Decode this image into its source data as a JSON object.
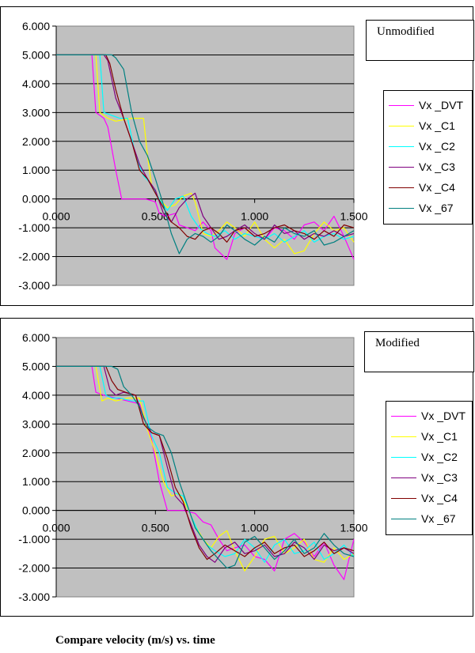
{
  "caption": "Compare velocity (m/s) vs. time",
  "colors": {
    "plot_background": "#c0c0c0",
    "Vx_DVT": "#ff00ff",
    "Vx_C1": "#ffff00",
    "Vx_C2": "#00ffff",
    "Vx_C3": "#800080",
    "Vx_C4": "#800000",
    "Vx_67": "#008080"
  },
  "chart_data": [
    {
      "type": "line",
      "title": "Unmodified",
      "xlabel": "",
      "ylabel": "",
      "xlim": [
        0,
        1.5
      ],
      "ylim": [
        -3,
        6
      ],
      "x_ticks": [
        "0.000",
        "0.500",
        "1.000",
        "1.500"
      ],
      "y_ticks": [
        "6.000",
        "5.000",
        "4.000",
        "3.000",
        "2.000",
        "1.000",
        "0.000",
        "-1.000",
        "-2.000",
        "-3.000"
      ],
      "grid": "horizontal",
      "legend_position": "right",
      "series": [
        {
          "name": "Vx _DVT",
          "color": "#ff00ff",
          "x": [
            0.0,
            0.18,
            0.2,
            0.24,
            0.26,
            0.3,
            0.33,
            0.37,
            0.45,
            0.5,
            0.52,
            0.55,
            0.6,
            0.62,
            0.66,
            0.7,
            0.74,
            0.78,
            0.8,
            0.86,
            0.9,
            0.95,
            1.0,
            1.05,
            1.1,
            1.15,
            1.2,
            1.25,
            1.3,
            1.35,
            1.4,
            1.45,
            1.5
          ],
          "y": [
            5.0,
            5.0,
            3.0,
            2.8,
            2.5,
            1.0,
            0.0,
            0.0,
            0.0,
            -0.1,
            -0.5,
            -0.6,
            -0.5,
            -0.9,
            -1.0,
            -1.1,
            -0.8,
            -1.1,
            -1.7,
            -2.1,
            -1.2,
            -1.0,
            -1.3,
            -1.4,
            -1.0,
            -1.1,
            -1.4,
            -0.9,
            -0.8,
            -1.1,
            -0.6,
            -1.3,
            -2.1
          ]
        },
        {
          "name": "Vx _C1",
          "color": "#ffff00",
          "x": [
            0.0,
            0.2,
            0.22,
            0.26,
            0.3,
            0.38,
            0.44,
            0.46,
            0.48,
            0.52,
            0.56,
            0.6,
            0.64,
            0.68,
            0.7,
            0.74,
            0.78,
            0.82,
            0.86,
            0.9,
            0.95,
            1.0,
            1.05,
            1.1,
            1.15,
            1.2,
            1.25,
            1.3,
            1.35,
            1.4,
            1.45,
            1.5
          ],
          "y": [
            5.0,
            5.0,
            3.0,
            2.8,
            2.7,
            2.8,
            2.8,
            1.5,
            0.5,
            0.0,
            -0.3,
            -0.2,
            0.1,
            0.2,
            -0.1,
            -1.2,
            -1.3,
            -1.1,
            -0.8,
            -1.0,
            -1.3,
            -0.8,
            -1.4,
            -1.7,
            -1.4,
            -1.9,
            -1.8,
            -1.2,
            -0.8,
            -1.1,
            -1.0,
            -1.5
          ]
        },
        {
          "name": "Vx _C2",
          "color": "#00ffff",
          "x": [
            0.0,
            0.22,
            0.24,
            0.28,
            0.32,
            0.36,
            0.4,
            0.44,
            0.48,
            0.52,
            0.56,
            0.6,
            0.64,
            0.68,
            0.72,
            0.76,
            0.8,
            0.85,
            0.9,
            0.95,
            1.0,
            1.05,
            1.1,
            1.15,
            1.2,
            1.25,
            1.3,
            1.35,
            1.4,
            1.45,
            1.5
          ],
          "y": [
            5.0,
            5.0,
            3.0,
            2.9,
            2.8,
            2.8,
            1.5,
            0.8,
            0.5,
            0.0,
            -0.4,
            0.0,
            0.1,
            -0.6,
            -1.0,
            -1.2,
            -1.3,
            -1.1,
            -1.4,
            -1.2,
            -1.3,
            -1.4,
            -1.2,
            -1.5,
            -1.3,
            -1.1,
            -1.5,
            -1.3,
            -1.2,
            -1.4,
            -1.3
          ]
        },
        {
          "name": "Vx _C3",
          "color": "#800080",
          "x": [
            0.0,
            0.24,
            0.26,
            0.3,
            0.34,
            0.38,
            0.42,
            0.46,
            0.5,
            0.54,
            0.58,
            0.62,
            0.66,
            0.7,
            0.74,
            0.78,
            0.82,
            0.86,
            0.9,
            0.95,
            1.0,
            1.05,
            1.1,
            1.15,
            1.2,
            1.25,
            1.3,
            1.35,
            1.4,
            1.45,
            1.5
          ],
          "y": [
            5.0,
            5.0,
            4.8,
            3.5,
            2.8,
            2.0,
            1.2,
            0.7,
            0.3,
            -0.5,
            -0.8,
            -0.3,
            0.0,
            0.2,
            -0.6,
            -1.0,
            -1.4,
            -1.3,
            -1.1,
            -0.9,
            -1.2,
            -1.4,
            -0.9,
            -1.2,
            -1.1,
            -1.4,
            -1.2,
            -1.3,
            -1.1,
            -1.3,
            -1.2
          ]
        },
        {
          "name": "Vx _C4",
          "color": "#800000",
          "x": [
            0.0,
            0.25,
            0.27,
            0.3,
            0.34,
            0.38,
            0.42,
            0.46,
            0.5,
            0.54,
            0.58,
            0.62,
            0.66,
            0.7,
            0.74,
            0.78,
            0.82,
            0.86,
            0.9,
            0.95,
            1.0,
            1.05,
            1.1,
            1.15,
            1.2,
            1.25,
            1.3,
            1.35,
            1.4,
            1.45,
            1.5
          ],
          "y": [
            5.0,
            5.0,
            4.7,
            3.8,
            2.8,
            2.0,
            1.0,
            0.7,
            0.2,
            -0.3,
            -0.8,
            -1.0,
            -1.3,
            -1.4,
            -1.1,
            -1.0,
            -1.2,
            -1.5,
            -1.1,
            -1.0,
            -1.3,
            -1.2,
            -1.0,
            -0.9,
            -1.1,
            -1.2,
            -1.4,
            -1.1,
            -1.3,
            -0.9,
            -1.0
          ]
        },
        {
          "name": "Vx _67",
          "color": "#008080",
          "x": [
            0.0,
            0.28,
            0.3,
            0.34,
            0.38,
            0.42,
            0.46,
            0.5,
            0.54,
            0.58,
            0.62,
            0.66,
            0.7,
            0.74,
            0.78,
            0.82,
            0.86,
            0.9,
            0.95,
            1.0,
            1.05,
            1.1,
            1.15,
            1.2,
            1.25,
            1.3,
            1.35,
            1.4,
            1.45,
            1.5
          ],
          "y": [
            5.0,
            5.0,
            4.9,
            4.5,
            3.0,
            2.0,
            1.5,
            0.7,
            -0.2,
            -1.2,
            -1.9,
            -1.4,
            -1.2,
            -1.3,
            -1.5,
            -1.3,
            -0.9,
            -1.1,
            -1.4,
            -1.6,
            -1.3,
            -1.5,
            -1.0,
            -1.2,
            -1.3,
            -1.1,
            -1.6,
            -1.5,
            -1.3,
            -1.1
          ]
        }
      ]
    },
    {
      "type": "line",
      "title": "Modified",
      "xlabel": "",
      "ylabel": "",
      "xlim": [
        0,
        1.5
      ],
      "ylim": [
        -3,
        6
      ],
      "x_ticks": [
        "0.000",
        "0.500",
        "1.000",
        "1.500"
      ],
      "y_ticks": [
        "6.000",
        "5.000",
        "4.000",
        "3.000",
        "2.000",
        "1.000",
        "0.000",
        "-1.000",
        "-2.000",
        "-3.000"
      ],
      "grid": "horizontal",
      "legend_position": "right",
      "series": [
        {
          "name": "Vx _DVT",
          "color": "#ff00ff",
          "x": [
            0.0,
            0.18,
            0.2,
            0.24,
            0.3,
            0.36,
            0.42,
            0.48,
            0.52,
            0.56,
            0.58,
            0.6,
            0.64,
            0.7,
            0.74,
            0.78,
            0.82,
            0.86,
            0.9,
            0.95,
            1.0,
            1.05,
            1.1,
            1.15,
            1.2,
            1.25,
            1.3,
            1.35,
            1.4,
            1.45,
            1.5
          ],
          "y": [
            5.0,
            5.0,
            4.1,
            4.0,
            3.9,
            3.8,
            3.7,
            2.5,
            1.0,
            0.0,
            0.0,
            0.0,
            0.0,
            -0.1,
            -0.4,
            -0.5,
            -1.0,
            -1.4,
            -1.3,
            -1.2,
            -1.6,
            -1.7,
            -2.1,
            -1.0,
            -0.8,
            -1.1,
            -1.6,
            -1.1,
            -1.9,
            -2.4,
            -1.0
          ]
        },
        {
          "name": "Vx _C1",
          "color": "#ffff00",
          "x": [
            0.0,
            0.2,
            0.23,
            0.26,
            0.3,
            0.36,
            0.42,
            0.46,
            0.5,
            0.54,
            0.58,
            0.62,
            0.66,
            0.7,
            0.74,
            0.78,
            0.82,
            0.86,
            0.9,
            0.95,
            1.0,
            1.05,
            1.1,
            1.15,
            1.2,
            1.25,
            1.3,
            1.35,
            1.4,
            1.45,
            1.5
          ],
          "y": [
            5.0,
            5.0,
            3.8,
            3.9,
            3.8,
            3.9,
            3.9,
            2.8,
            2.0,
            1.0,
            0.5,
            0.6,
            0.1,
            -0.5,
            -1.0,
            -1.3,
            -0.9,
            -0.7,
            -1.4,
            -2.1,
            -1.6,
            -1.0,
            -0.9,
            -1.5,
            -1.3,
            -1.0,
            -1.7,
            -1.8,
            -1.3,
            -1.7,
            -1.5
          ]
        },
        {
          "name": "Vx _C2",
          "color": "#00ffff",
          "x": [
            0.0,
            0.22,
            0.25,
            0.28,
            0.32,
            0.38,
            0.44,
            0.48,
            0.52,
            0.56,
            0.6,
            0.64,
            0.68,
            0.72,
            0.76,
            0.8,
            0.85,
            0.9,
            0.95,
            1.0,
            1.05,
            1.1,
            1.15,
            1.2,
            1.25,
            1.3,
            1.35,
            1.4,
            1.45,
            1.5
          ],
          "y": [
            5.0,
            5.0,
            4.0,
            3.9,
            3.9,
            3.8,
            3.8,
            2.6,
            2.0,
            0.8,
            0.6,
            0.5,
            -0.2,
            -0.8,
            -1.2,
            -1.4,
            -1.6,
            -1.5,
            -1.0,
            -1.3,
            -1.8,
            -1.2,
            -1.0,
            -1.5,
            -1.4,
            -1.1,
            -1.7,
            -1.5,
            -1.2,
            -1.6
          ]
        },
        {
          "name": "Vx _C3",
          "color": "#800080",
          "x": [
            0.0,
            0.24,
            0.27,
            0.3,
            0.34,
            0.4,
            0.44,
            0.48,
            0.52,
            0.56,
            0.6,
            0.64,
            0.68,
            0.72,
            0.76,
            0.8,
            0.85,
            0.9,
            0.95,
            1.0,
            1.05,
            1.1,
            1.15,
            1.2,
            1.25,
            1.3,
            1.35,
            1.4,
            1.45,
            1.5
          ],
          "y": [
            5.0,
            5.0,
            4.2,
            4.0,
            4.1,
            4.0,
            3.2,
            2.7,
            2.6,
            1.5,
            0.5,
            0.2,
            -0.5,
            -1.2,
            -1.6,
            -1.8,
            -1.3,
            -1.1,
            -1.5,
            -1.4,
            -1.2,
            -1.6,
            -1.5,
            -1.1,
            -1.3,
            -1.7,
            -1.2,
            -1.4,
            -1.3,
            -1.5
          ]
        },
        {
          "name": "Vx _C4",
          "color": "#800000",
          "x": [
            0.0,
            0.25,
            0.28,
            0.31,
            0.35,
            0.4,
            0.44,
            0.48,
            0.52,
            0.56,
            0.6,
            0.64,
            0.68,
            0.72,
            0.76,
            0.8,
            0.85,
            0.9,
            0.95,
            1.0,
            1.05,
            1.1,
            1.15,
            1.2,
            1.25,
            1.3,
            1.35,
            1.4,
            1.45,
            1.5
          ],
          "y": [
            5.0,
            5.0,
            4.5,
            4.2,
            4.1,
            4.0,
            3.0,
            2.7,
            2.6,
            1.8,
            0.8,
            0.3,
            -0.6,
            -1.3,
            -1.7,
            -1.5,
            -1.2,
            -1.4,
            -1.6,
            -1.3,
            -1.1,
            -1.5,
            -1.3,
            -1.2,
            -1.6,
            -1.4,
            -1.1,
            -1.5,
            -1.3,
            -1.4
          ]
        },
        {
          "name": "Vx _67",
          "color": "#008080",
          "x": [
            0.0,
            0.28,
            0.31,
            0.34,
            0.38,
            0.42,
            0.46,
            0.5,
            0.54,
            0.58,
            0.62,
            0.66,
            0.7,
            0.74,
            0.78,
            0.82,
            0.86,
            0.9,
            0.95,
            1.0,
            1.05,
            1.1,
            1.15,
            1.2,
            1.25,
            1.3,
            1.35,
            1.4,
            1.45,
            1.5
          ],
          "y": [
            5.0,
            5.0,
            4.9,
            4.3,
            4.0,
            3.6,
            2.9,
            2.7,
            2.6,
            2.0,
            1.0,
            0.2,
            -0.6,
            -1.0,
            -1.4,
            -1.7,
            -2.0,
            -1.9,
            -1.1,
            -0.9,
            -1.3,
            -1.7,
            -1.4,
            -1.0,
            -1.5,
            -1.3,
            -0.8,
            -1.2,
            -1.5,
            -1.6
          ]
        }
      ]
    }
  ]
}
